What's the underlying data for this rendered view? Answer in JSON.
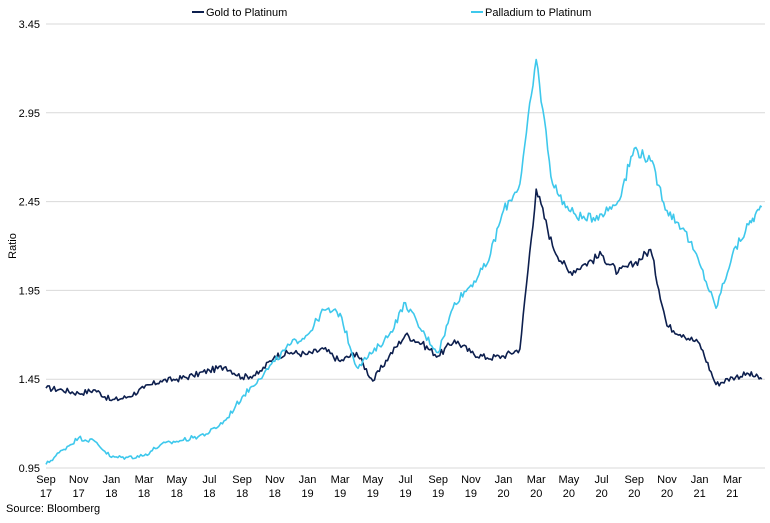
{
  "chart_data": {
    "type": "line",
    "title": "",
    "xlabel": "",
    "ylabel": "Ratio",
    "ylim": [
      0.95,
      3.45
    ],
    "yticks": [
      "3.45",
      "2.95",
      "2.45",
      "1.95",
      "1.45",
      "0.95"
    ],
    "xlim": [
      "2017-09",
      "2021-05"
    ],
    "grid": "horizontal",
    "legend": "top-center",
    "xtick_labels": [
      {
        "month": "Sep",
        "year": "17"
      },
      {
        "month": "Nov",
        "year": "17"
      },
      {
        "month": "Jan",
        "year": "18"
      },
      {
        "month": "Mar",
        "year": "18"
      },
      {
        "month": "May",
        "year": "18"
      },
      {
        "month": "Jul",
        "year": "18"
      },
      {
        "month": "Sep",
        "year": "18"
      },
      {
        "month": "Nov",
        "year": "18"
      },
      {
        "month": "Jan",
        "year": "19"
      },
      {
        "month": "Mar",
        "year": "19"
      },
      {
        "month": "May",
        "year": "19"
      },
      {
        "month": "Jul",
        "year": "19"
      },
      {
        "month": "Sep",
        "year": "19"
      },
      {
        "month": "Nov",
        "year": "19"
      },
      {
        "month": "Jan",
        "year": "20"
      },
      {
        "month": "Mar",
        "year": "20"
      },
      {
        "month": "May",
        "year": "20"
      },
      {
        "month": "Jul",
        "year": "20"
      },
      {
        "month": "Sep",
        "year": "20"
      },
      {
        "month": "Nov",
        "year": "20"
      },
      {
        "month": "Jan",
        "year": "21"
      },
      {
        "month": "Mar",
        "year": "21"
      }
    ],
    "series": [
      {
        "name": "Gold to Platinum",
        "color": "#0d1f4e",
        "points": [
          [
            "2017-09-01",
            1.4
          ],
          [
            "2017-10-01",
            1.39
          ],
          [
            "2017-11-01",
            1.37
          ],
          [
            "2017-12-01",
            1.39
          ],
          [
            "2018-01-01",
            1.33
          ],
          [
            "2018-02-01",
            1.35
          ],
          [
            "2018-03-01",
            1.4
          ],
          [
            "2018-04-01",
            1.44
          ],
          [
            "2018-05-01",
            1.45
          ],
          [
            "2018-06-01",
            1.47
          ],
          [
            "2018-07-01",
            1.5
          ],
          [
            "2018-08-01",
            1.52
          ],
          [
            "2018-09-01",
            1.46
          ],
          [
            "2018-10-01",
            1.48
          ],
          [
            "2018-11-01",
            1.58
          ],
          [
            "2018-12-01",
            1.6
          ],
          [
            "2019-01-01",
            1.59
          ],
          [
            "2019-02-01",
            1.62
          ],
          [
            "2019-03-01",
            1.55
          ],
          [
            "2019-04-01",
            1.6
          ],
          [
            "2019-05-01",
            1.44
          ],
          [
            "2019-06-01",
            1.58
          ],
          [
            "2019-07-01",
            1.7
          ],
          [
            "2019-08-01",
            1.65
          ],
          [
            "2019-09-01",
            1.58
          ],
          [
            "2019-10-01",
            1.67
          ],
          [
            "2019-11-01",
            1.6
          ],
          [
            "2019-12-01",
            1.57
          ],
          [
            "2020-01-01",
            1.58
          ],
          [
            "2020-02-01",
            1.62
          ],
          [
            "2020-03-01",
            2.52
          ],
          [
            "2020-04-01",
            2.2
          ],
          [
            "2020-05-01",
            2.05
          ],
          [
            "2020-06-01",
            2.1
          ],
          [
            "2020-07-01",
            2.15
          ],
          [
            "2020-08-01",
            2.05
          ],
          [
            "2020-09-01",
            2.1
          ],
          [
            "2020-10-01",
            2.18
          ],
          [
            "2020-11-01",
            1.75
          ],
          [
            "2020-12-01",
            1.7
          ],
          [
            "2021-01-01",
            1.65
          ],
          [
            "2021-02-01",
            1.42
          ],
          [
            "2021-03-01",
            1.46
          ],
          [
            "2021-04-01",
            1.48
          ],
          [
            "2021-04-25",
            1.45
          ]
        ]
      },
      {
        "name": "Palladium to Platinum",
        "color": "#3ec8ec",
        "points": [
          [
            "2017-09-01",
            0.97
          ],
          [
            "2017-10-01",
            1.05
          ],
          [
            "2017-11-01",
            1.12
          ],
          [
            "2017-12-01",
            1.1
          ],
          [
            "2018-01-01",
            1.01
          ],
          [
            "2018-02-01",
            1.01
          ],
          [
            "2018-03-01",
            1.02
          ],
          [
            "2018-04-01",
            1.08
          ],
          [
            "2018-05-01",
            1.1
          ],
          [
            "2018-06-01",
            1.12
          ],
          [
            "2018-07-01",
            1.15
          ],
          [
            "2018-08-01",
            1.22
          ],
          [
            "2018-09-01",
            1.35
          ],
          [
            "2018-10-01",
            1.45
          ],
          [
            "2018-11-01",
            1.55
          ],
          [
            "2018-12-01",
            1.65
          ],
          [
            "2019-01-01",
            1.7
          ],
          [
            "2019-02-01",
            1.84
          ],
          [
            "2019-03-01",
            1.82
          ],
          [
            "2019-04-01",
            1.52
          ],
          [
            "2019-05-01",
            1.6
          ],
          [
            "2019-06-01",
            1.7
          ],
          [
            "2019-07-01",
            1.88
          ],
          [
            "2019-08-01",
            1.72
          ],
          [
            "2019-09-01",
            1.6
          ],
          [
            "2019-10-01",
            1.88
          ],
          [
            "2019-11-01",
            1.98
          ],
          [
            "2019-12-01",
            2.1
          ],
          [
            "2020-01-01",
            2.4
          ],
          [
            "2020-02-01",
            2.55
          ],
          [
            "2020-03-01",
            3.25
          ],
          [
            "2020-04-01",
            2.55
          ],
          [
            "2020-05-01",
            2.4
          ],
          [
            "2020-06-01",
            2.35
          ],
          [
            "2020-07-01",
            2.38
          ],
          [
            "2020-08-01",
            2.45
          ],
          [
            "2020-09-01",
            2.75
          ],
          [
            "2020-10-01",
            2.68
          ],
          [
            "2020-11-01",
            2.4
          ],
          [
            "2020-12-01",
            2.3
          ],
          [
            "2021-01-01",
            2.1
          ],
          [
            "2021-02-01",
            1.85
          ],
          [
            "2021-03-01",
            2.15
          ],
          [
            "2021-04-01",
            2.32
          ],
          [
            "2021-04-25",
            2.42
          ]
        ]
      }
    ]
  },
  "footer": {
    "source": "Source: Bloomberg"
  }
}
